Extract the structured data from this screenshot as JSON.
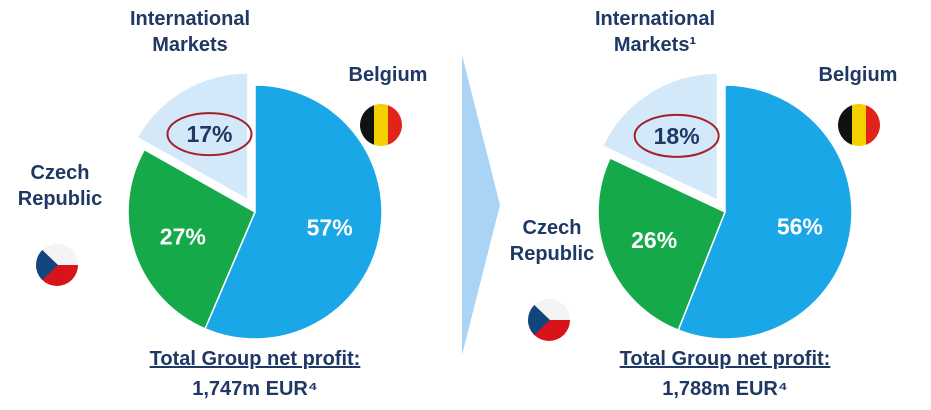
{
  "chart_data": [
    {
      "type": "pie",
      "categories": [
        "Belgium",
        "Czech Republic",
        "International Markets"
      ],
      "values": [
        57,
        27,
        17
      ],
      "value_labels": [
        "57%",
        "27%",
        "17%"
      ],
      "colors": [
        "#1aa7e8",
        "#16a94a",
        "#d3e8f8"
      ],
      "footer_title": "Total Group net profit:",
      "footer_value": "1,747m EUR⁴"
    },
    {
      "type": "pie",
      "categories": [
        "Belgium",
        "Czech Republic",
        "International Markets¹"
      ],
      "values": [
        56,
        26,
        18
      ],
      "value_labels": [
        "56%",
        "26%",
        "18%"
      ],
      "colors": [
        "#1aa7e8",
        "#16a94a",
        "#d3e8f8"
      ],
      "footer_title": "Total Group net profit:",
      "footer_value": "1,788m EUR⁴"
    }
  ]
}
